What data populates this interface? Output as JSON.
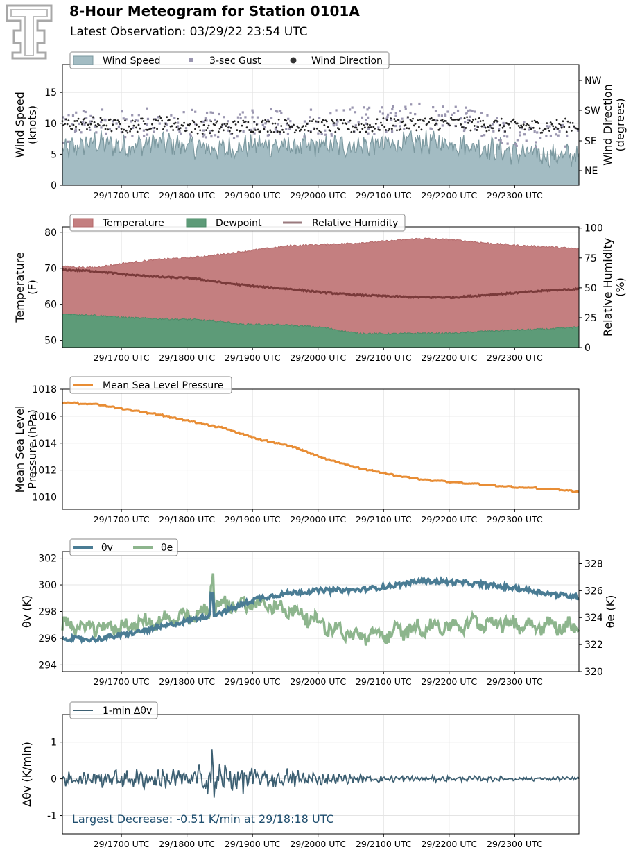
{
  "header": {
    "title": "8-Hour Meteogram for Station 0101A",
    "subtitle": "Latest Observation: 03/29/22 23:54 UTC"
  },
  "colors": {
    "wind_fill": "#a3bcc3",
    "wind_line": "#7b989f",
    "gust": "#9a96b0",
    "direction": "#222222",
    "temperature": "#c47f80",
    "dewpoint": "#5d9b78",
    "rh": "#7a3a3a",
    "pressure": "#e88d35",
    "theta_v": "#4a7c94",
    "theta_e": "#8db58d",
    "dtheta": "#3c5f72",
    "annotation": "#1f4e6e",
    "logo": "#a8a8a8"
  },
  "logo": {
    "icon": "double-t-logo-icon"
  },
  "chart_data": [
    {
      "type": "area",
      "id": "wind",
      "ylabel_left": [
        "Wind Speed",
        "(knots)"
      ],
      "ylabel_right": [
        "Wind Direction",
        "(degrees)"
      ],
      "ylim": [
        0,
        19.5
      ],
      "yticks": [
        0,
        5,
        10,
        15
      ],
      "right_ticks": [
        "NE",
        "SE",
        "SW",
        "NW"
      ],
      "x_range": [
        16.02,
        23.9
      ],
      "xticks": [
        16.92,
        17.92,
        18.92,
        19.92,
        20.92,
        21.92,
        22.92
      ],
      "xtick_labels": [
        "29/1700 UTC",
        "29/1800 UTC",
        "29/1900 UTC",
        "29/2000 UTC",
        "29/2100 UTC",
        "29/2200 UTC",
        "29/2300 UTC"
      ],
      "grid": true,
      "legend": {
        "placement": "top-left",
        "entries": [
          "Wind Speed",
          "3-sec Gust",
          "Wind Direction"
        ]
      },
      "series": [
        {
          "name": "Wind Speed",
          "kind": "area",
          "profile": [
            [
              16.0,
              5.5
            ],
            [
              16.5,
              7.0
            ],
            [
              17.0,
              6.2
            ],
            [
              17.5,
              7.0
            ],
            [
              18.0,
              6.2
            ],
            [
              18.5,
              5.8
            ],
            [
              19.0,
              6.6
            ],
            [
              19.5,
              6.2
            ],
            [
              20.0,
              6.4
            ],
            [
              20.5,
              6.4
            ],
            [
              21.0,
              6.6
            ],
            [
              21.5,
              7.0
            ],
            [
              22.0,
              6.8
            ],
            [
              22.5,
              6.0
            ],
            [
              23.0,
              5.2
            ],
            [
              23.5,
              4.8
            ],
            [
              23.9,
              4.8
            ]
          ],
          "range_min": 2.0,
          "range_max": 10.7
        },
        {
          "name": "3-sec Gust",
          "kind": "scatter",
          "profile": [
            [
              16.0,
              8.5
            ],
            [
              16.5,
              10.0
            ],
            [
              17.0,
              9.5
            ],
            [
              17.5,
              10.0
            ],
            [
              18.0,
              9.5
            ],
            [
              18.5,
              9.0
            ],
            [
              19.0,
              10.0
            ],
            [
              19.5,
              9.5
            ],
            [
              20.0,
              9.6
            ],
            [
              20.5,
              10.0
            ],
            [
              21.0,
              10.2
            ],
            [
              21.5,
              11.0
            ],
            [
              22.0,
              10.5
            ],
            [
              22.5,
              9.0
            ],
            [
              23.0,
              8.0
            ],
            [
              23.5,
              7.2
            ],
            [
              23.9,
              7.2
            ]
          ],
          "range_min": 5.0,
          "range_max": 17.3
        },
        {
          "name": "Wind Direction",
          "kind": "scatter",
          "axis": "right",
          "profile": [
            [
              16.0,
              9.8
            ],
            [
              16.5,
              10.0
            ],
            [
              17.0,
              9.4
            ],
            [
              17.5,
              10.2
            ],
            [
              18.0,
              9.5
            ],
            [
              18.5,
              9.3
            ],
            [
              19.0,
              9.7
            ],
            [
              19.5,
              9.6
            ],
            [
              20.0,
              9.6
            ],
            [
              20.5,
              9.4
            ],
            [
              21.0,
              9.8
            ],
            [
              21.5,
              10.0
            ],
            [
              22.0,
              10.0
            ],
            [
              22.5,
              9.8
            ],
            [
              23.0,
              9.5
            ],
            [
              23.5,
              9.6
            ],
            [
              23.9,
              9.8
            ]
          ],
          "range_min": 6.5,
          "range_max": 12.5
        }
      ]
    },
    {
      "type": "area",
      "id": "temp",
      "ylabel_left": [
        "Temperature",
        "(F)"
      ],
      "ylabel_right": [
        "Relative Humidity",
        "(%)"
      ],
      "ylim": [
        48,
        81.5
      ],
      "yticks": [
        50,
        60,
        70,
        80
      ],
      "right_ylim": [
        0,
        101
      ],
      "right_yticks": [
        0,
        25,
        50,
        75,
        100
      ],
      "x_range": [
        16.02,
        23.9
      ],
      "xticks": [
        16.92,
        17.92,
        18.92,
        19.92,
        20.92,
        21.92,
        22.92
      ],
      "xtick_labels": [
        "29/1700 UTC",
        "29/1800 UTC",
        "29/1900 UTC",
        "29/2000 UTC",
        "29/2100 UTC",
        "29/2200 UTC",
        "29/2300 UTC"
      ],
      "grid": true,
      "legend": {
        "placement": "top-left",
        "entries": [
          "Temperature",
          "Dewpoint",
          "Relative Humidity"
        ]
      },
      "series": [
        {
          "name": "Temperature",
          "kind": "area",
          "profile": [
            [
              16.0,
              70.5
            ],
            [
              16.5,
              70.2
            ],
            [
              17.0,
              71.5
            ],
            [
              17.5,
              72.5
            ],
            [
              18.0,
              73.0
            ],
            [
              18.5,
              74.0
            ],
            [
              19.0,
              75.2
            ],
            [
              19.5,
              76.3
            ],
            [
              20.0,
              76.6
            ],
            [
              20.5,
              77.0
            ],
            [
              21.0,
              77.6
            ],
            [
              21.5,
              78.3
            ],
            [
              22.0,
              77.9
            ],
            [
              22.5,
              77.0
            ],
            [
              23.0,
              76.3
            ],
            [
              23.5,
              75.9
            ],
            [
              23.9,
              75.4
            ]
          ]
        },
        {
          "name": "Dewpoint",
          "kind": "area",
          "profile": [
            [
              16.0,
              57.3
            ],
            [
              16.5,
              57.0
            ],
            [
              17.0,
              56.3
            ],
            [
              17.5,
              56.0
            ],
            [
              18.0,
              55.8
            ],
            [
              18.5,
              55.2
            ],
            [
              18.7,
              54.5
            ],
            [
              19.0,
              54.4
            ],
            [
              19.5,
              54.2
            ],
            [
              20.0,
              53.6
            ],
            [
              20.5,
              52.0
            ],
            [
              21.0,
              51.8
            ],
            [
              21.5,
              52.0
            ],
            [
              22.0,
              52.0
            ],
            [
              22.5,
              52.6
            ],
            [
              23.0,
              52.9
            ],
            [
              23.5,
              53.2
            ],
            [
              23.9,
              53.7
            ]
          ]
        },
        {
          "name": "Relative Humidity",
          "kind": "line",
          "axis": "right",
          "profile": [
            [
              16.0,
              65
            ],
            [
              16.5,
              64
            ],
            [
              17.0,
              61
            ],
            [
              17.5,
              59
            ],
            [
              18.0,
              58
            ],
            [
              18.5,
              54
            ],
            [
              19.0,
              51
            ],
            [
              19.5,
              49
            ],
            [
              20.0,
              46
            ],
            [
              20.5,
              44
            ],
            [
              21.0,
              43
            ],
            [
              21.5,
              42
            ],
            [
              22.0,
              42
            ],
            [
              22.5,
              44
            ],
            [
              23.0,
              46
            ],
            [
              23.5,
              48
            ],
            [
              23.9,
              49
            ]
          ]
        }
      ]
    },
    {
      "type": "line",
      "id": "pres",
      "ylabel_left": [
        "Mean Sea Level",
        "Pressure (hPa)"
      ],
      "ylim": [
        1009.1,
        1018.0
      ],
      "yticks": [
        1010,
        1012,
        1014,
        1016,
        1018
      ],
      "x_range": [
        16.02,
        23.9
      ],
      "xticks": [
        16.92,
        17.92,
        18.92,
        19.92,
        20.92,
        21.92,
        22.92
      ],
      "xtick_labels": [
        "29/1700 UTC",
        "29/1800 UTC",
        "29/1900 UTC",
        "29/2000 UTC",
        "29/2100 UTC",
        "29/2200 UTC",
        "29/2300 UTC"
      ],
      "grid": true,
      "legend": {
        "placement": "top-left",
        "entries": [
          "Mean Sea Level Pressure"
        ]
      },
      "series": [
        {
          "name": "Mean Sea Level Pressure",
          "kind": "line",
          "profile": [
            [
              16.0,
              1017.0
            ],
            [
              16.5,
              1016.9
            ],
            [
              17.0,
              1016.5
            ],
            [
              17.5,
              1016.1
            ],
            [
              18.0,
              1015.6
            ],
            [
              18.5,
              1015.1
            ],
            [
              19.0,
              1014.3
            ],
            [
              19.5,
              1013.8
            ],
            [
              20.0,
              1012.9
            ],
            [
              20.5,
              1012.2
            ],
            [
              21.0,
              1011.7
            ],
            [
              21.5,
              1011.3
            ],
            [
              22.0,
              1011.1
            ],
            [
              22.5,
              1010.9
            ],
            [
              23.0,
              1010.7
            ],
            [
              23.5,
              1010.6
            ],
            [
              23.9,
              1010.4
            ]
          ]
        }
      ]
    },
    {
      "type": "line",
      "id": "theta",
      "ylabel_left": [
        "θv (K)"
      ],
      "ylabel_right": [
        "θe (K)"
      ],
      "ylim": [
        293.5,
        302.5
      ],
      "yticks": [
        294,
        296,
        298,
        300,
        302
      ],
      "right_ylim": [
        320,
        328.9
      ],
      "right_yticks": [
        320,
        322,
        324,
        326,
        328
      ],
      "x_range": [
        16.02,
        23.9
      ],
      "xticks": [
        16.92,
        17.92,
        18.92,
        19.92,
        20.92,
        21.92,
        22.92
      ],
      "xtick_labels": [
        "29/1700 UTC",
        "29/1800 UTC",
        "29/1900 UTC",
        "29/2000 UTC",
        "29/2100 UTC",
        "29/2200 UTC",
        "29/2300 UTC"
      ],
      "grid": true,
      "legend": {
        "placement": "top-left",
        "entries": [
          "θv",
          "θe"
        ]
      },
      "series": [
        {
          "name": "θv",
          "kind": "line",
          "profile": [
            [
              16.0,
              296.0
            ],
            [
              16.5,
              295.9
            ],
            [
              17.0,
              296.3
            ],
            [
              17.5,
              296.8
            ],
            [
              18.0,
              297.4
            ],
            [
              18.5,
              298.0
            ],
            [
              19.0,
              299.0
            ],
            [
              19.5,
              299.4
            ],
            [
              20.0,
              299.6
            ],
            [
              20.5,
              299.6
            ],
            [
              21.0,
              299.9
            ],
            [
              21.5,
              300.3
            ],
            [
              22.0,
              300.2
            ],
            [
              22.5,
              300.0
            ],
            [
              23.0,
              299.7
            ],
            [
              23.5,
              299.3
            ],
            [
              23.9,
              299.1
            ]
          ]
        },
        {
          "name": "θe",
          "kind": "line",
          "axis": "right",
          "profile": [
            [
              16.0,
              323.5
            ],
            [
              16.5,
              323.2
            ],
            [
              17.0,
              323.4
            ],
            [
              17.5,
              323.8
            ],
            [
              18.0,
              324.0
            ],
            [
              18.5,
              325.0
            ],
            [
              19.0,
              325.0
            ],
            [
              19.5,
              324.6
            ],
            [
              20.0,
              323.5
            ],
            [
              20.5,
              322.6
            ],
            [
              21.0,
              322.8
            ],
            [
              21.5,
              323.3
            ],
            [
              22.0,
              323.4
            ],
            [
              22.5,
              323.7
            ],
            [
              23.0,
              323.5
            ],
            [
              23.5,
              323.4
            ],
            [
              23.9,
              323.3
            ]
          ]
        }
      ]
    },
    {
      "type": "line",
      "id": "dtheta",
      "ylabel_left": [
        "Δθv (K/min)"
      ],
      "ylim": [
        -1.5,
        1.75
      ],
      "yticks": [
        -1,
        0,
        1
      ],
      "x_range": [
        16.02,
        23.9
      ],
      "xticks": [
        16.92,
        17.92,
        18.92,
        19.92,
        20.92,
        21.92,
        22.92
      ],
      "xtick_labels": [
        "29/1700 UTC",
        "29/1800 UTC",
        "29/1900 UTC",
        "29/2000 UTC",
        "29/2100 UTC",
        "29/2200 UTC",
        "29/2300 UTC"
      ],
      "grid": true,
      "legend": {
        "placement": "top-left",
        "entries": [
          "1-min Δθv"
        ]
      },
      "annotation": "Largest Decrease: -0.51 K/min at 29/18:18 UTC",
      "series": [
        {
          "name": "1-min Δθv",
          "kind": "line",
          "range_min": -0.51,
          "range_max": 0.8,
          "amplitude_profile": [
            [
              16.0,
              0.18
            ],
            [
              17.0,
              0.2
            ],
            [
              18.0,
              0.25
            ],
            [
              18.3,
              0.4
            ],
            [
              19.0,
              0.25
            ],
            [
              19.5,
              0.22
            ],
            [
              20.0,
              0.14
            ],
            [
              20.5,
              0.09
            ],
            [
              21.0,
              0.08
            ],
            [
              22.0,
              0.06
            ],
            [
              23.0,
              0.05
            ],
            [
              23.9,
              0.05
            ]
          ]
        }
      ]
    }
  ]
}
